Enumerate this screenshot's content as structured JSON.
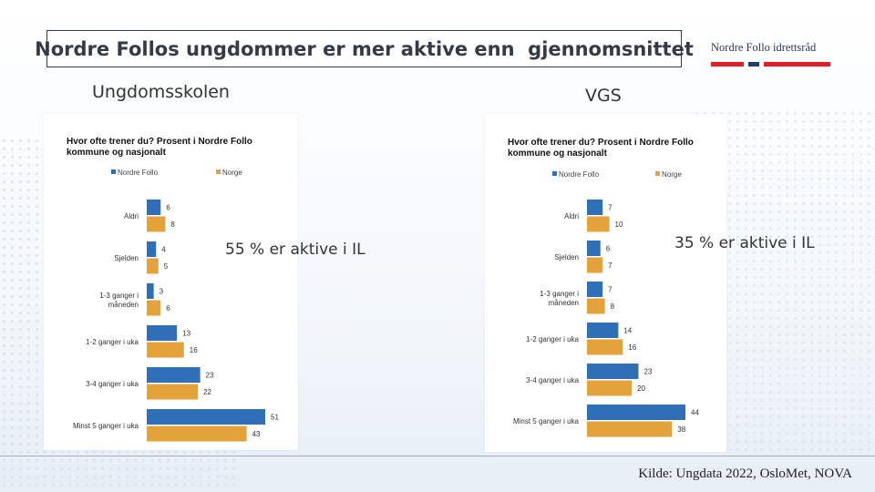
{
  "title": "Nordre Follos ungdommer er mer aktive enn  gjennomsnittet",
  "brand": {
    "name": "Nordre Follo idrettsråd",
    "colors": {
      "red": "#e31e24",
      "navy": "#1f3e73"
    }
  },
  "colors": {
    "nordre_follo": "#2f6fb7",
    "norge": "#e4a23a"
  },
  "panels": [
    {
      "label": "Ungdomsskolen",
      "annotation": "55 % er aktive i IL",
      "chart_title_lines": [
        "Hvor ofte trener du? Prosent i Nordre Follo",
        "kommune og nasjonalt"
      ]
    },
    {
      "label": "VGS",
      "annotation": "35 % er aktive i IL",
      "chart_title_lines": [
        "Hvor ofte trener du? Prosent i Nordre Follo",
        "kommune og nasjonalt"
      ]
    }
  ],
  "chart_data": [
    {
      "type": "bar",
      "orientation": "horizontal",
      "title": "Hvor ofte trener du? Prosent i Nordre Follo kommune og nasjonalt",
      "legend_position": "top",
      "categories": [
        [
          "Aldri"
        ],
        [
          "Sjelden"
        ],
        [
          "1-3 ganger i",
          "måneden"
        ],
        [
          "1-2 ganger i uka"
        ],
        [
          "3-4 ganger i uka"
        ],
        [
          "Minst 5 ganger i uka"
        ]
      ],
      "series": [
        {
          "name": "Nordre Follo",
          "values": [
            6,
            4,
            3,
            13,
            23,
            51
          ]
        },
        {
          "name": "Norge",
          "values": [
            8,
            5,
            6,
            16,
            22,
            43
          ]
        }
      ],
      "xlim": [
        0,
        51
      ],
      "grid": false
    },
    {
      "type": "bar",
      "orientation": "horizontal",
      "title": "Hvor ofte trener du? Prosent i Nordre Follo kommune og nasjonalt",
      "legend_position": "top",
      "categories": [
        [
          "Aldri"
        ],
        [
          "Sjelden"
        ],
        [
          "1-3 ganger i",
          "måneden"
        ],
        [
          "1-2 ganger i uka"
        ],
        [
          "3-4 ganger i uka"
        ],
        [
          "Minst 5 ganger i uka"
        ]
      ],
      "series": [
        {
          "name": "Nordre Follo",
          "values": [
            7,
            6,
            7,
            14,
            23,
            44
          ]
        },
        {
          "name": "Norge",
          "values": [
            10,
            7,
            8,
            16,
            20,
            38
          ]
        }
      ],
      "xlim": [
        0,
        44
      ],
      "grid": false
    }
  ],
  "source": "Kilde:  Ungdata 2022, OsloMet, NOVA"
}
